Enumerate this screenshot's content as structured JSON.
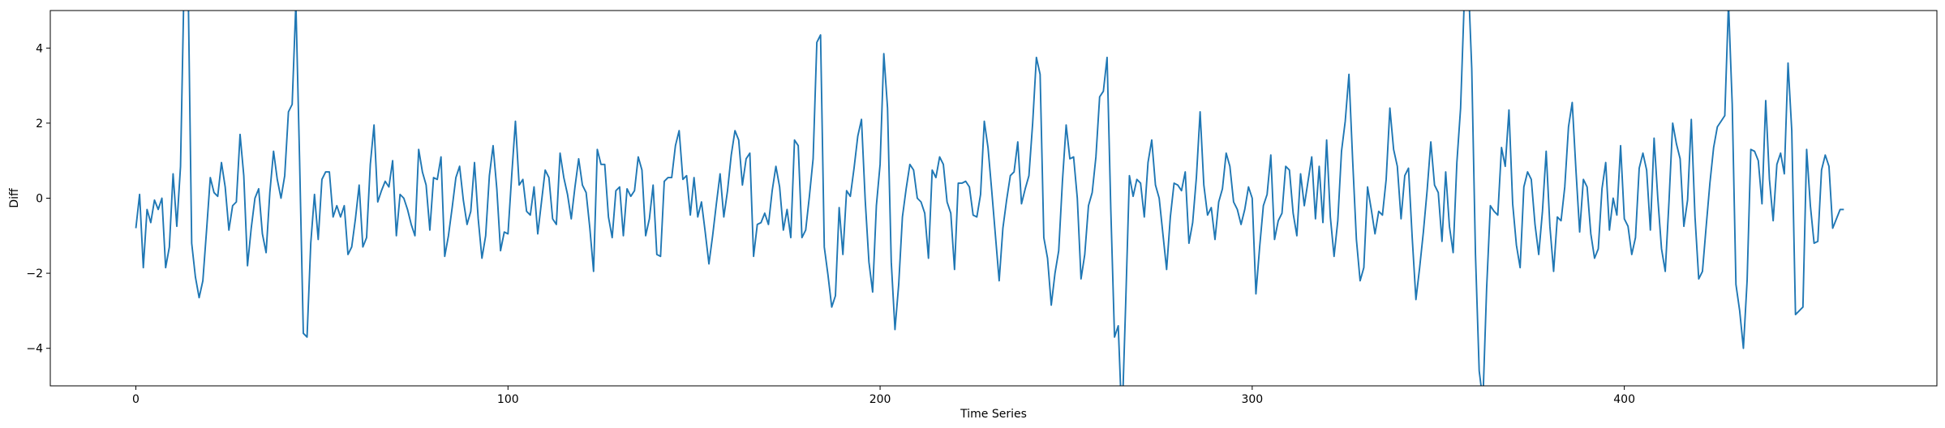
{
  "chart_data": {
    "type": "line",
    "title": "",
    "xlabel": "Time Series",
    "ylabel": "Diff",
    "xlim": [
      -23,
      484
    ],
    "ylim": [
      -5,
      5
    ],
    "x_ticks": [
      0,
      100,
      200,
      300,
      400
    ],
    "x_tick_labels": [
      "0",
      "100",
      "200",
      "300",
      "400"
    ],
    "y_ticks": [
      -4,
      -2,
      0,
      2,
      4
    ],
    "y_tick_labels": [
      "−4",
      "−2",
      "0",
      "2",
      "4"
    ],
    "grid": false,
    "series": [
      {
        "color": "#1f77b4",
        "x_start": 0,
        "values": [
          -0.8,
          0.1,
          -1.85,
          -0.3,
          -0.65,
          -0.05,
          -0.3,
          0.0,
          -1.85,
          -1.3,
          0.65,
          -0.75,
          0.85,
          6.0,
          6.0,
          -1.2,
          -2.1,
          -2.65,
          -2.2,
          -0.85,
          0.55,
          0.15,
          0.05,
          0.95,
          0.3,
          -0.85,
          -0.2,
          -0.1,
          1.7,
          0.6,
          -1.8,
          -0.8,
          0.0,
          0.25,
          -0.95,
          -1.45,
          0.15,
          1.25,
          0.5,
          0.0,
          0.6,
          2.3,
          2.5,
          5.2,
          1.0,
          -3.6,
          -3.7,
          -1.2,
          0.1,
          -1.1,
          0.5,
          0.7,
          0.7,
          -0.5,
          -0.2,
          -0.5,
          -0.2,
          -1.5,
          -1.3,
          -0.55,
          0.35,
          -1.3,
          -1.05,
          0.9,
          1.95,
          -0.1,
          0.2,
          0.45,
          0.3,
          1.0,
          -1.0,
          0.1,
          0.0,
          -0.3,
          -0.7,
          -1.0,
          1.3,
          0.7,
          0.35,
          -0.85,
          0.55,
          0.5,
          1.1,
          -1.55,
          -1.0,
          -0.25,
          0.55,
          0.85,
          -0.05,
          -0.7,
          -0.35,
          0.95,
          -0.55,
          -1.6,
          -1.0,
          0.6,
          1.4,
          0.25,
          -1.4,
          -0.9,
          -0.95,
          0.6,
          2.05,
          0.35,
          0.5,
          -0.35,
          -0.45,
          0.3,
          -0.95,
          -0.1,
          0.75,
          0.55,
          -0.55,
          -0.7,
          1.2,
          0.55,
          0.1,
          -0.55,
          0.3,
          1.05,
          0.35,
          0.15,
          -0.8,
          -1.95,
          1.3,
          0.9,
          0.9,
          -0.5,
          -1.05,
          0.2,
          0.3,
          -1.0,
          0.25,
          0.05,
          0.2,
          1.1,
          0.75,
          -1.0,
          -0.55,
          0.35,
          -1.5,
          -1.55,
          0.45,
          0.55,
          0.55,
          1.4,
          1.8,
          0.5,
          0.6,
          -0.45,
          0.55,
          -0.5,
          -0.1,
          -0.9,
          -1.75,
          -1.0,
          -0.15,
          0.65,
          -0.5,
          0.2,
          1.15,
          1.8,
          1.55,
          0.35,
          1.05,
          1.2,
          -1.55,
          -0.7,
          -0.65,
          -0.4,
          -0.7,
          0.2,
          0.85,
          0.3,
          -0.85,
          -0.3,
          -1.05,
          1.55,
          1.4,
          -1.05,
          -0.85,
          0.05,
          1.05,
          4.15,
          4.35,
          -1.3,
          -2.05,
          -2.9,
          -2.6,
          -0.25,
          -1.5,
          0.2,
          0.05,
          0.8,
          1.65,
          2.1,
          -0.05,
          -1.7,
          -2.5,
          -0.2,
          0.9,
          3.85,
          2.4,
          -1.7,
          -3.5,
          -2.3,
          -0.5,
          0.25,
          0.9,
          0.75,
          0.0,
          -0.1,
          -0.4,
          -1.6,
          0.75,
          0.55,
          1.1,
          0.9,
          -0.1,
          -0.4,
          -1.9,
          0.4,
          0.4,
          0.45,
          0.3,
          -0.45,
          -0.5,
          0.1,
          2.05,
          1.35,
          0.2,
          -1.0,
          -2.2,
          -0.8,
          -0.05,
          0.6,
          0.7,
          1.5,
          -0.15,
          0.25,
          0.6,
          2.0,
          3.75,
          3.3,
          -1.05,
          -1.6,
          -2.85,
          -2.0,
          -1.4,
          0.45,
          1.95,
          1.05,
          1.1,
          0.0,
          -2.15,
          -1.5,
          -0.2,
          0.15,
          1.1,
          2.7,
          2.85,
          3.75,
          -0.3,
          -3.7,
          -3.4,
          -6.0,
          -2.8,
          0.6,
          0.05,
          0.5,
          0.4,
          -0.5,
          0.95,
          1.55,
          0.35,
          0.0,
          -0.95,
          -1.9,
          -0.5,
          0.4,
          0.35,
          0.2,
          0.7,
          -1.2,
          -0.65,
          0.55,
          2.3,
          0.35,
          -0.45,
          -0.25,
          -1.1,
          -0.1,
          0.25,
          1.2,
          0.85,
          -0.1,
          -0.3,
          -0.7,
          -0.3,
          0.3,
          0.0,
          -2.55,
          -1.3,
          -0.2,
          0.1,
          1.15,
          -1.1,
          -0.6,
          -0.4,
          0.85,
          0.75,
          -0.4,
          -1.0,
          0.65,
          -0.2,
          0.45,
          1.1,
          -0.55,
          0.85,
          -0.65,
          1.55,
          -0.5,
          -1.55,
          -0.6,
          1.25,
          2.05,
          3.3,
          1.0,
          -1.1,
          -2.2,
          -1.85,
          0.3,
          -0.3,
          -0.95,
          -0.35,
          -0.45,
          0.5,
          2.4,
          1.3,
          0.85,
          -0.55,
          0.6,
          0.8,
          -1.05,
          -2.7,
          -1.85,
          -0.9,
          0.2,
          1.5,
          0.35,
          0.15,
          -1.15,
          0.7,
          -0.75,
          -1.45,
          0.95,
          2.4,
          5.3,
          6.0,
          3.45,
          -1.5,
          -4.6,
          -5.4,
          -2.4,
          -0.2,
          -0.35,
          -0.45,
          1.35,
          0.85,
          2.35,
          -0.15,
          -1.25,
          -1.85,
          0.3,
          0.7,
          0.5,
          -0.7,
          -1.5,
          -0.35,
          1.25,
          -0.75,
          -1.95,
          -0.5,
          -0.6,
          0.3,
          1.9,
          2.55,
          0.75,
          -0.9,
          0.5,
          0.3,
          -0.95,
          -1.6,
          -1.35,
          0.25,
          0.95,
          -0.85,
          0.0,
          -0.45,
          1.4,
          -0.55,
          -0.75,
          -1.5,
          -1.05,
          0.8,
          1.2,
          0.75,
          -0.85,
          1.6,
          0.0,
          -1.35,
          -1.95,
          -0.1,
          2.0,
          1.45,
          1.05,
          -0.75,
          -0.05,
          2.1,
          -0.5,
          -2.15,
          -1.95,
          -0.75,
          0.4,
          1.35,
          1.9,
          2.05,
          2.2,
          5.2,
          2.5,
          -2.3,
          -3.0,
          -4.0,
          -2.2,
          1.3,
          1.25,
          1.0,
          -0.15,
          2.6,
          0.5,
          -0.6,
          0.9,
          1.2,
          0.65,
          3.6,
          1.8,
          -3.1,
          -3.0,
          -2.9,
          1.3,
          -0.2,
          -1.2,
          -1.15,
          0.75,
          1.15,
          0.85,
          -0.8,
          -0.55,
          -0.3,
          -0.3
        ]
      }
    ]
  }
}
